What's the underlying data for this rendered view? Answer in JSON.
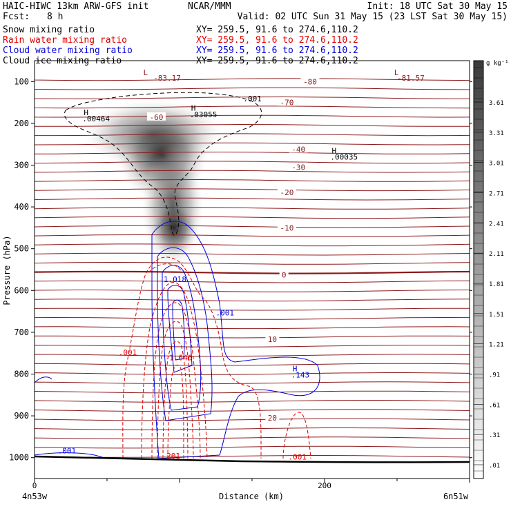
{
  "header": {
    "model_line": "HAIC-HIWC 13km ARW-GFS init",
    "center": "NCAR/MMM",
    "init": "Init: 18 UTC Sat 30 May 15",
    "fcst_label": "Fcst:",
    "fcst_value": "8 h",
    "valid": "Valid: 02 UTC Sun 31 May 15 (23 LST Sat 30 May 15)"
  },
  "fields": [
    {
      "name": "Snow mixing ratio",
      "xy": "XY= 259.5, 91.6 to 274.6,110.2",
      "color": "#000000"
    },
    {
      "name": "Rain water mixing ratio",
      "xy": "XY= 259.5, 91.6 to 274.6,110.2",
      "color": "#e00000"
    },
    {
      "name": "Cloud water mixing ratio",
      "xy": "XY= 259.5, 91.6 to 274.6,110.2",
      "color": "#0000dd"
    },
    {
      "name": "Cloud ice mixing ratio",
      "xy": "XY= 259.5, 91.6 to 274.6,110.2",
      "color": "#000000"
    }
  ],
  "colorbar": {
    "unit": "g kg⁻¹",
    "ticks": [
      "3.61",
      "3.31",
      "3.01",
      "2.71",
      "2.41",
      "2.11",
      "1.81",
      "1.51",
      "1.21",
      ".91",
      ".61",
      ".31",
      ".01"
    ]
  },
  "chart_data": {
    "type": "contour-cross-section",
    "ylabel": "Pressure (hPa)",
    "xlabel": "Distance (km)",
    "left_endpoint": "4n53w",
    "right_endpoint": "6n51w",
    "ylim": [
      1050,
      50
    ],
    "xlim": [
      0,
      300
    ],
    "y_ticks": [
      100,
      200,
      300,
      400,
      500,
      600,
      700,
      800,
      900,
      1000
    ],
    "x_ticks": [
      0,
      200
    ],
    "temperature_contours": {
      "color": "#8b1a1a",
      "interval_c": 5,
      "labeled_levels": [
        {
          "label": "-80",
          "x_km": 190,
          "p": 100
        },
        {
          "label": "-70",
          "x_km": 174,
          "p": 150
        },
        {
          "label": "-60",
          "x_km": 84,
          "p": 185
        },
        {
          "label": "-40",
          "x_km": 182,
          "p": 262
        },
        {
          "label": "-30",
          "x_km": 182,
          "p": 305
        },
        {
          "label": "-20",
          "x_km": 174,
          "p": 365
        },
        {
          "label": "-10",
          "x_km": 174,
          "p": 450
        },
        {
          "label": "0",
          "x_km": 172,
          "p": 562
        },
        {
          "label": "10",
          "x_km": 164,
          "p": 717
        },
        {
          "label": "20",
          "x_km": 164,
          "p": 905
        }
      ]
    },
    "extrema_labels": [
      {
        "text": "L",
        "x_km": 75,
        "p": 85,
        "color": "#8b1a1a"
      },
      {
        "text": "-83.17",
        "x_km": 82,
        "p": 98,
        "color": "#8b1a1a"
      },
      {
        "text": "L",
        "x_km": 248,
        "p": 85,
        "color": "#8b1a1a"
      },
      {
        "text": "-81.57",
        "x_km": 250,
        "p": 98,
        "color": "#8b1a1a"
      },
      {
        "text": "H",
        "x_km": 34,
        "p": 180,
        "color": "#000000"
      },
      {
        "text": ".00464",
        "x_km": 33,
        "p": 195,
        "color": "#000000"
      },
      {
        "text": "H",
        "x_km": 108,
        "p": 170,
        "color": "#000000"
      },
      {
        "text": ".03055",
        "x_km": 107,
        "p": 185,
        "color": "#000000"
      },
      {
        "text": "H",
        "x_km": 205,
        "p": 272,
        "color": "#000000"
      },
      {
        "text": ".00035",
        "x_km": 204,
        "p": 287,
        "color": "#000000"
      },
      {
        "text": ".001",
        "x_km": 144,
        "p": 147,
        "color": "#000000"
      },
      {
        "text": "1.018",
        "x_km": 89,
        "p": 580,
        "color": "#0000dd"
      },
      {
        "text": ".001",
        "x_km": 125,
        "p": 660,
        "color": "#0000dd"
      },
      {
        "text": "H",
        "x_km": 178,
        "p": 793,
        "color": "#0000dd"
      },
      {
        "text": ".143",
        "x_km": 177,
        "p": 808,
        "color": "#0000dd"
      },
      {
        "text": ".001",
        "x_km": 16,
        "p": 990,
        "color": "#0000dd"
      },
      {
        "text": ".001",
        "x_km": 58,
        "p": 755,
        "color": "#e00000"
      },
      {
        "text": ".001",
        "x_km": 175,
        "p": 1005,
        "color": "#e00000"
      },
      {
        "text": "1.646",
        "x_km": 93,
        "p": 767,
        "color": "#e00000"
      },
      {
        "text": "201",
        "x_km": 91,
        "p": 1002,
        "color": "#e00000"
      }
    ],
    "snow_max_gkg": 3.61,
    "ground_pressure_hpa": [
      995,
      1012
    ]
  }
}
